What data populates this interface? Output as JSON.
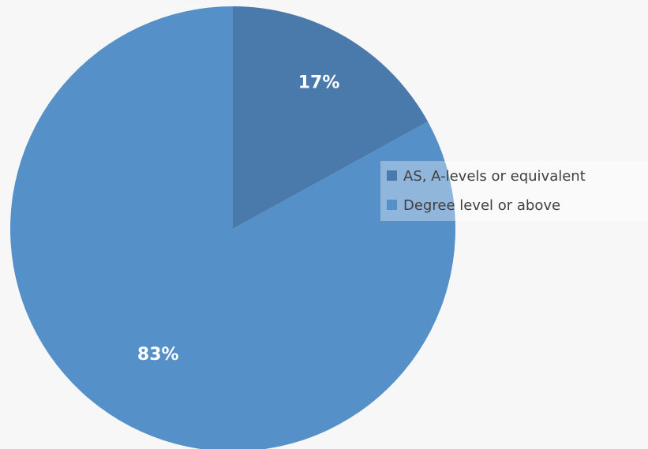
{
  "chart_data": {
    "type": "pie",
    "title": "",
    "categories": [
      "AS, A-levels or equivalent",
      "Degree level or above"
    ],
    "values": [
      17,
      83
    ],
    "labels": [
      "17%",
      "83%"
    ],
    "colors": [
      "#4a7aab",
      "#5590c8"
    ],
    "start_angle_deg": 0,
    "direction": "clockwise",
    "legend": {
      "position": "right",
      "entries": [
        {
          "label": "AS, A-levels or equivalent",
          "color": "#4a7aab"
        },
        {
          "label": "Degree level or above",
          "color": "#5590c8"
        }
      ]
    }
  }
}
